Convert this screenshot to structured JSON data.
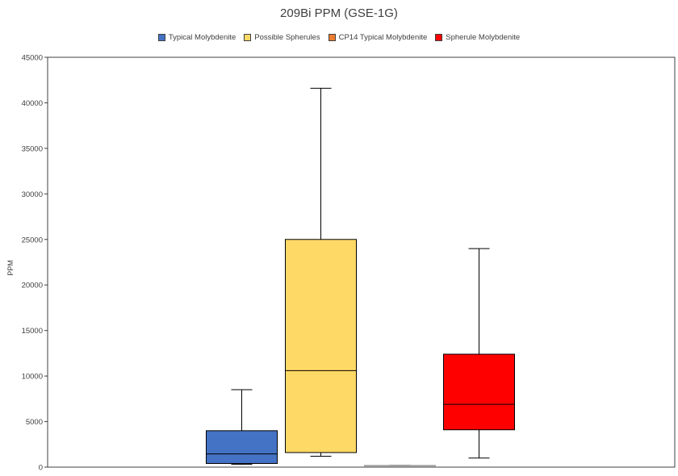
{
  "chart_data": {
    "type": "box",
    "title": "209Bi PPM (GSE-1G)",
    "xlabel": "",
    "ylabel": "PPM",
    "ylim": [
      0,
      45000
    ],
    "yticks": [
      0,
      5000,
      10000,
      15000,
      20000,
      25000,
      30000,
      35000,
      40000,
      45000
    ],
    "grid": false,
    "legend_position": "top",
    "series": [
      {
        "name": "Typical Molybdenite",
        "color": "#4472C4",
        "min": 300,
        "q1": 400,
        "median": 1450,
        "q3": 4000,
        "max": 8500
      },
      {
        "name": "Possible Spherules",
        "color": "#FFD966",
        "min": 1200,
        "q1": 1600,
        "median": 10600,
        "q3": 25000,
        "max": 41600
      },
      {
        "name": "CP14 Typical Molybdenite",
        "color": "#ED7D31",
        "min": 100,
        "q1": 100,
        "median": 150,
        "q3": 200,
        "max": 200
      },
      {
        "name": "Spherule Molybdenite",
        "color": "#FF0000",
        "min": 1000,
        "q1": 4100,
        "median": 6900,
        "q3": 12400,
        "max": 24000
      }
    ]
  }
}
